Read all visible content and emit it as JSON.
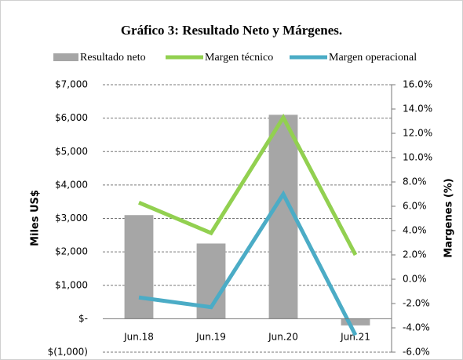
{
  "chart_data": {
    "type": "bar",
    "title": "Gráfico 3: Resultado Neto y Márgenes.",
    "y_label": "Miles US$",
    "y2_label": "Margenes (%)",
    "categories": [
      "Jun.18",
      "Jun.19",
      "Jun.20",
      "Jun.21"
    ],
    "series": [
      {
        "name": "Resultado neto",
        "type": "bar",
        "color": "#a6a6a6",
        "values": [
          3100,
          2250,
          6100,
          -200
        ]
      },
      {
        "name": "Margen técnico",
        "type": "line",
        "axis": "y2",
        "color": "#92d050",
        "values": [
          6.3,
          3.8,
          13.3,
          2.0
        ]
      },
      {
        "name": "Margen operacional",
        "type": "line",
        "axis": "y2",
        "color": "#4bacc6",
        "values": [
          -1.5,
          -2.3,
          7.0,
          -4.6
        ]
      }
    ],
    "ylim": [
      -1000,
      7000
    ],
    "yticks": [
      {
        "value": -1000,
        "label": "$(1,000)"
      },
      {
        "value": 0,
        "label": "$-"
      },
      {
        "value": 1000,
        "label": "$1,000"
      },
      {
        "value": 2000,
        "label": "$2,000"
      },
      {
        "value": 3000,
        "label": "$3,000"
      },
      {
        "value": 4000,
        "label": "$4,000"
      },
      {
        "value": 5000,
        "label": "$5,000"
      },
      {
        "value": 6000,
        "label": "$6,000"
      },
      {
        "value": 7000,
        "label": "$7,000"
      }
    ],
    "y2lim": [
      -6,
      16
    ],
    "y2ticks": [
      {
        "value": -6,
        "label": "-6.0%"
      },
      {
        "value": -4,
        "label": "-4.0%"
      },
      {
        "value": -2,
        "label": "-2.0%"
      },
      {
        "value": 0,
        "label": "0.0%"
      },
      {
        "value": 2,
        "label": "2.0%"
      },
      {
        "value": 4,
        "label": "4.0%"
      },
      {
        "value": 6,
        "label": "6.0%"
      },
      {
        "value": 8,
        "label": "8.0%"
      },
      {
        "value": 10,
        "label": "10.0%"
      },
      {
        "value": 12,
        "label": "12.0%"
      },
      {
        "value": 14,
        "label": "14.0%"
      },
      {
        "value": 16,
        "label": "16.0%"
      }
    ],
    "grid": true,
    "legend": "top"
  }
}
